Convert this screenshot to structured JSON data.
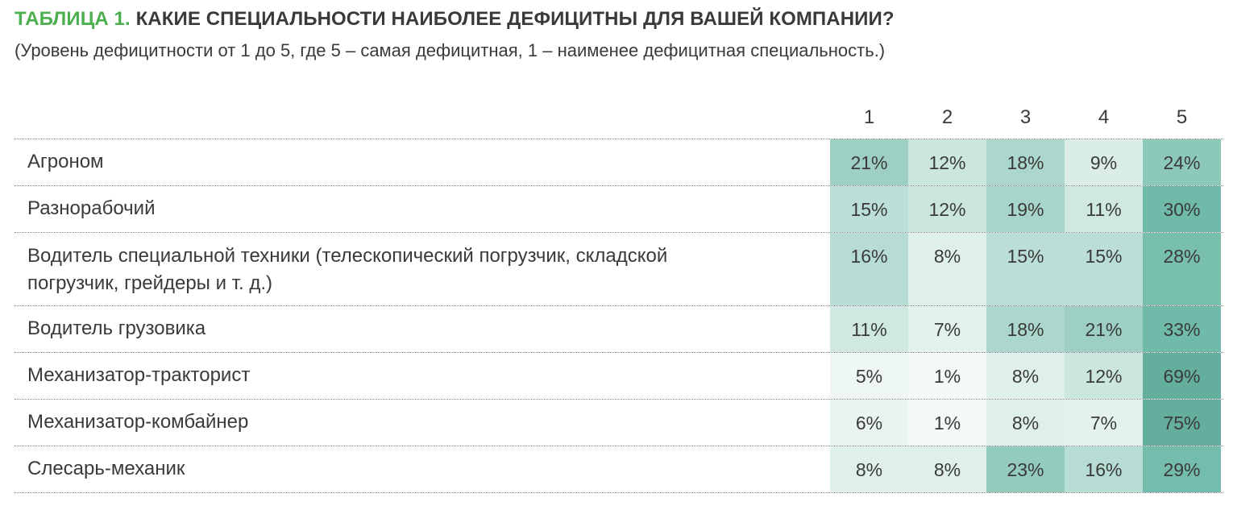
{
  "header": {
    "tag": "ТАБЛИЦА 1.",
    "title": "КАКИЕ СПЕЦИАЛЬНОСТИ НАИБОЛЕЕ ДЕФИЦИТНЫ ДЛЯ ВАШЕЙ КОМПАНИИ?",
    "subtitle": "(Уровень дефицитности от 1 до 5, где 5 – самая дефицитная, 1 – наименее дефицитная специальность.)"
  },
  "colors": {
    "tag": "#4caf50",
    "scale_low": "#f3f9f7",
    "scale_high": "#6fbaa8"
  },
  "table": {
    "columns": [
      "1",
      "2",
      "3",
      "4",
      "5"
    ],
    "rows": [
      {
        "label": "Агроном",
        "values": [
          "21%",
          "12%",
          "18%",
          "9%",
          "24%"
        ]
      },
      {
        "label": "Разнорабочий",
        "values": [
          "15%",
          "12%",
          "19%",
          "11%",
          "30%"
        ]
      },
      {
        "label": "Водитель специальной техники (телескопический погрузчик, складской погрузчик, грейдеры и т. д.)",
        "values": [
          "16%",
          "8%",
          "15%",
          "15%",
          "28%"
        ]
      },
      {
        "label": "Водитель грузовика",
        "values": [
          "11%",
          "7%",
          "18%",
          "21%",
          "33%"
        ]
      },
      {
        "label": "Механизатор-тракторист",
        "values": [
          "5%",
          "1%",
          "8%",
          "12%",
          "69%"
        ]
      },
      {
        "label": "Механизатор-комбайнер",
        "values": [
          "6%",
          "1%",
          "8%",
          "7%",
          "75%"
        ]
      },
      {
        "label": "Слесарь-механик",
        "values": [
          "8%",
          "8%",
          "23%",
          "16%",
          "29%"
        ]
      }
    ]
  }
}
